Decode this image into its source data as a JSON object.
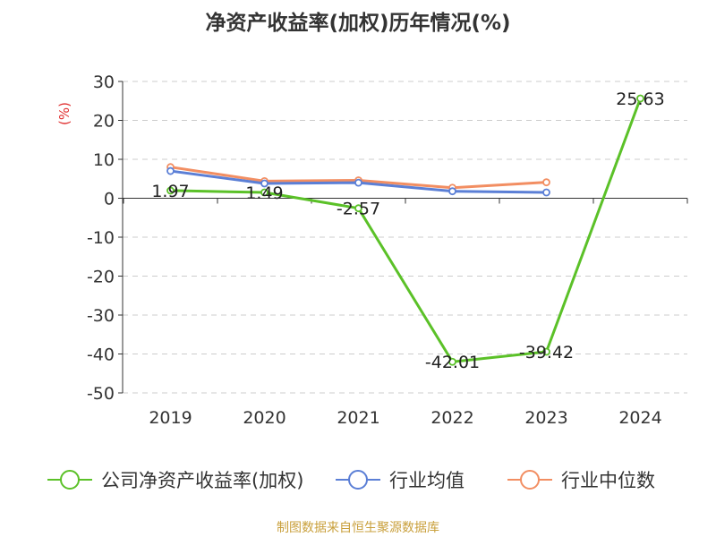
{
  "chart_data": {
    "type": "line",
    "title": "净资产收益率(加权)历年情况(%)",
    "unit_label": "(%)",
    "categories": [
      "2019",
      "2020",
      "2021",
      "2022",
      "2023",
      "2024"
    ],
    "y_ticks": [
      "30",
      "20",
      "10",
      "0",
      "-10",
      "-20",
      "-30",
      "-40",
      "-50"
    ],
    "ylim": [
      -50,
      30
    ],
    "grid": true,
    "legend_position": "bottom",
    "series": [
      {
        "name": "公司净资产收益率(加权)",
        "color": "#5bc128",
        "values": [
          1.97,
          1.49,
          -2.57,
          -42.01,
          -39.42,
          25.63
        ],
        "labels": [
          "1.97",
          "1.49",
          "-2.57",
          "-42.01",
          "-39.42",
          "25.63"
        ]
      },
      {
        "name": "行业均值",
        "color": "#5b7fd6",
        "values": [
          7.0,
          3.8,
          4.0,
          1.8,
          1.5,
          null
        ]
      },
      {
        "name": "行业中位数",
        "color": "#f28e62",
        "values": [
          8.0,
          4.4,
          4.6,
          2.7,
          4.1,
          null
        ]
      }
    ]
  },
  "footer": {
    "source": "制图数据来自恒生聚源数据库"
  }
}
